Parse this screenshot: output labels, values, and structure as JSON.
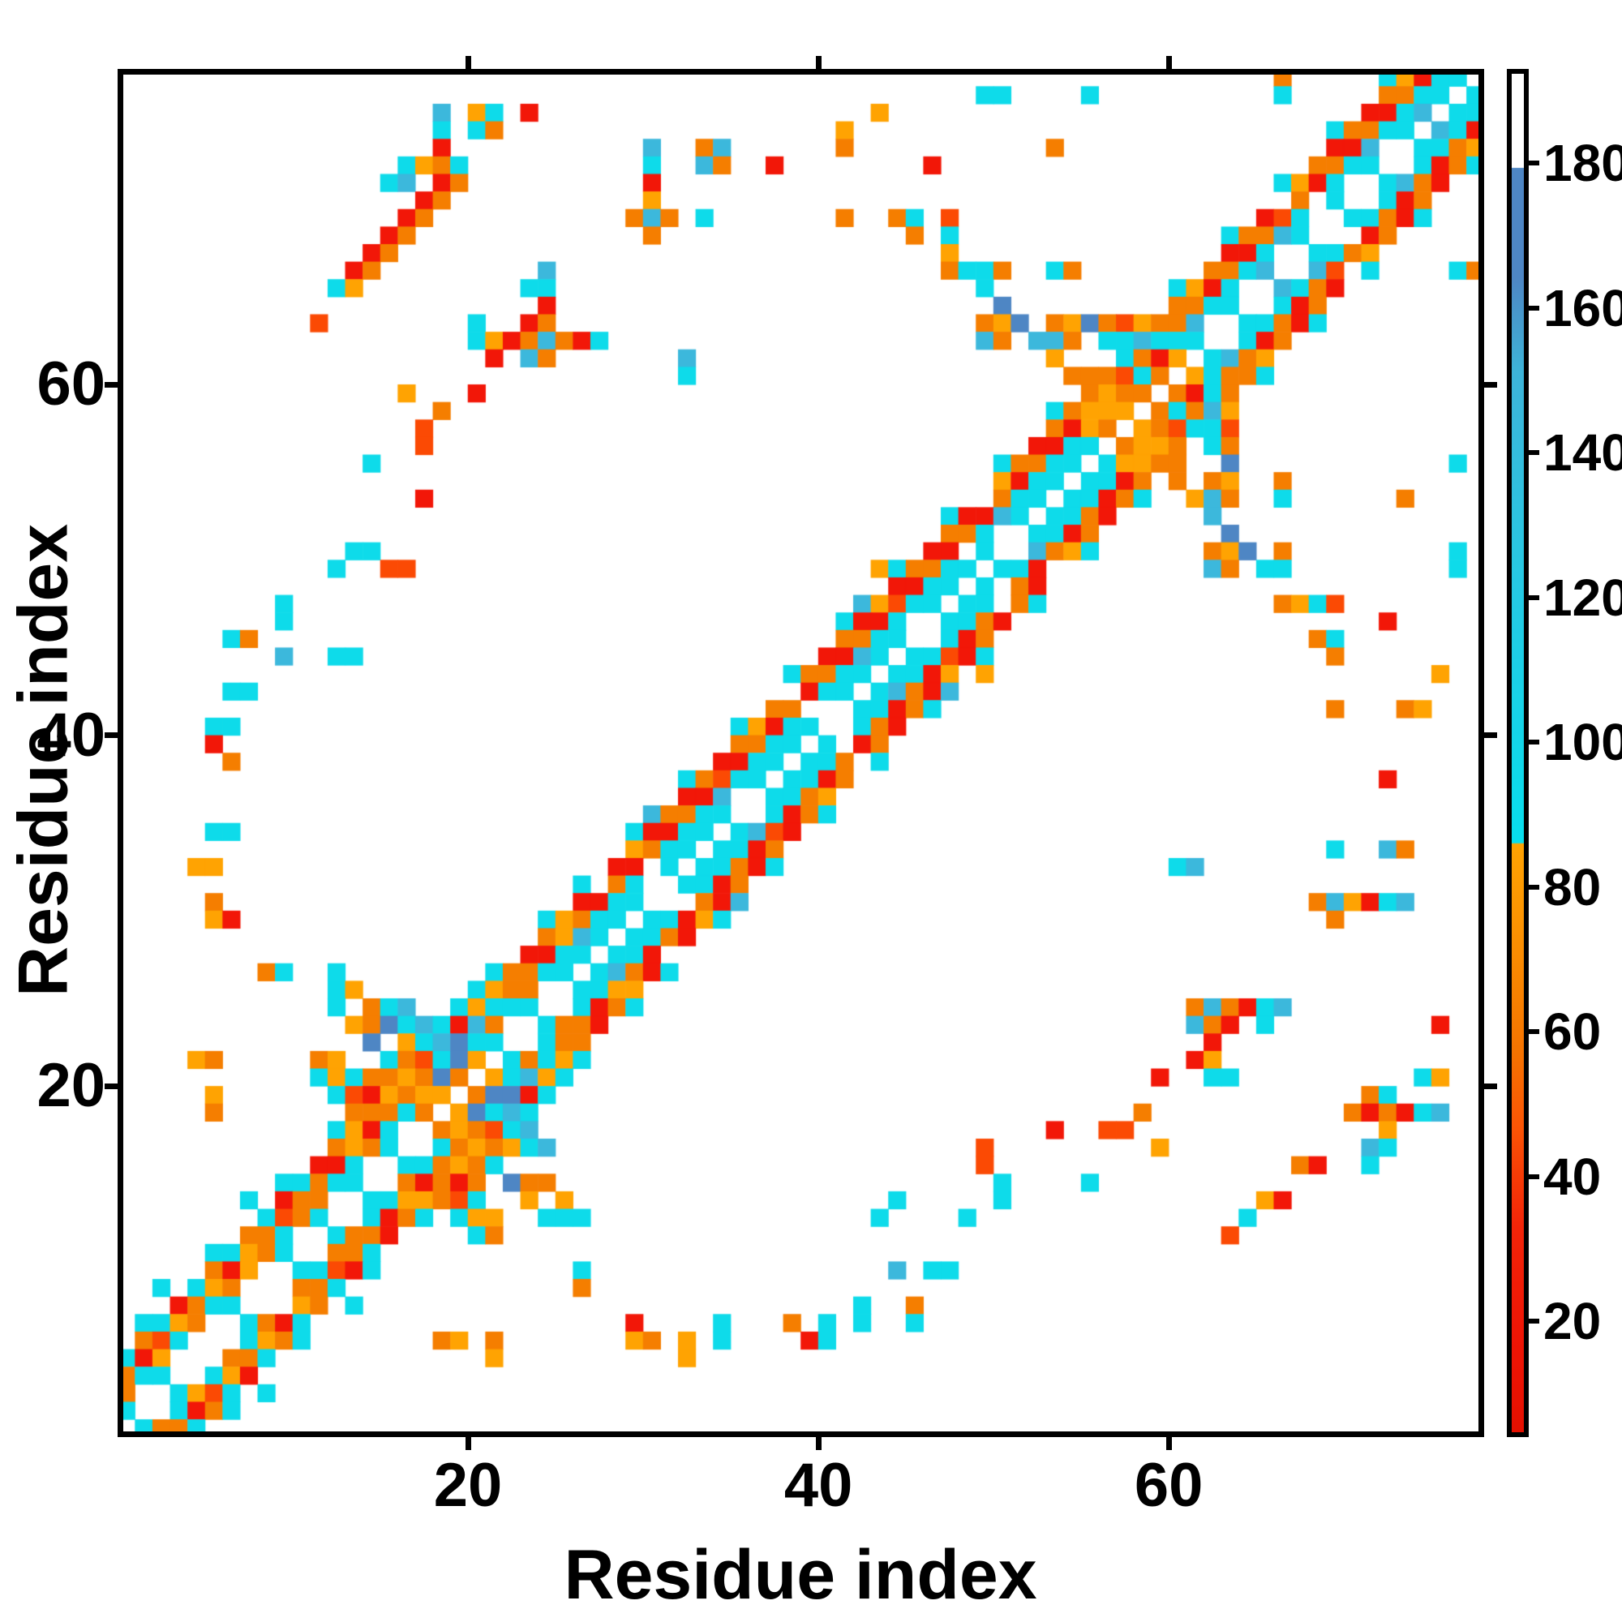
{
  "figure": {
    "x_axis_title": "Residue index",
    "y_axis_title": "Residue index",
    "background": "#ffffff",
    "axis_color": "#000000"
  },
  "chart_data": {
    "type": "heatmap",
    "title": "",
    "xlabel": "Residue index",
    "ylabel": "Residue index",
    "n_residues": 78,
    "x_range": [
      0,
      78
    ],
    "y_range": [
      0,
      78
    ],
    "x_ticks": [
      20,
      40,
      60
    ],
    "y_ticks": [
      20,
      40,
      60
    ],
    "grid": false,
    "symmetric": true,
    "description": "Protein residue-residue contact map. Each colored cell (i,j) is a contact; color encodes the value given by the colorbar (approx. 4-193). Rows are listed top to bottom (residue 78 down to residue 1); each string has 78 characters for residues 1..78 left to right. '.' = no contact (white).",
    "classes": {
      "r": {
        "name": "red",
        "color": "#f21708",
        "approx_value": 25
      },
      "v": {
        "name": "vermilion",
        "color": "#fb4a04",
        "approx_value": 43
      },
      "o": {
        "name": "orange",
        "color": "#f57e00",
        "approx_value": 58
      },
      "a": {
        "name": "amber",
        "color": "#ffa302",
        "approx_value": 76
      },
      "c": {
        "name": "bright-cyan",
        "color": "#0edbea",
        "approx_value": 93
      },
      "m": {
        "name": "medium-cyan",
        "color": "#3cb8dc",
        "approx_value": 132
      },
      "b": {
        "name": "steel-blue",
        "color": "#4e86c4",
        "approx_value": 170
      }
    },
    "rows_top_to_bottom": [
      "..................................................................o.....carcc.",
      ".................................................cc....c..........c.....oocc.c",
      "..................m.ac.r...................a...........................rrcm.cc",
      "..................c.co...................a...........................coocc.mcr",
      "..................r...........m..om......o...........o...............rrm..ccoa",
      "................caoc..........c..mo..r........r.....................oocc..croc",
      "...............cm.ro..........r...................................carc..cmor..",
      ".................ro...........a....................................o.c..cro...",
      "................ro...........omo.c.......o..oc.v.................rvc..ccorc...",
      "...............ro.............o..............o.c...............coomc...ro.....",
      "..............ro...............................a...............rrc..ccoa......",
      ".............ro.........m......................occo..co.......oocm..mv.c....co",
      "............ca.........cc........................c..........carc..mcor........",
      "........................r.........................b.........oocc..cro.........",
      "...........v........c..ro........................oab.oabovaoom..ccorc.........",
      "....................caromorc.....................mo.mmo.ccmccc..cro...........",
      ".....................r.mo.......m....................a...cora.cmoa............",
      "................................c.....................ooovco.acooc............",
      "................a...r..................................oaoo.orco..............",
      "..................o..................................coaaa.ocoma..............",
      ".................v...................................orao.aovccv..............",
      ".................v..................................rrcc.oaao.co..............",
      "..............c...................................coocc.caaoo..b............c.",
      "..................................................arcc.ccro.o.oa..o...........",
      ".................r................................occ.ccroc..amo..c......o....",
      "...............................................crrmc.ccor.....m...............",
      "...............................................ooc..ccro.......b..............",
      ".............cc...............................rr.c..moac......oab.o.........c.",
      "............c..vv..........................acoocc.ccr.........mo.cc.........c.",
      "............................................rrcc.c.or.........................",
      ".........c................................mavcc.cc.oc.............oacv........",
      ".........c...............................crrc..ccor.....................r.....",
      "......co.................................oocc..cro..................oc........",
      ".........m..cc..........................rrmc.ccvrc...................o........",
      "......................................coocc.ccra.a.........................a..",
      "......cc...............................rcc.cmorm..............................",
      ".....................................oo...ccroc......................o...oa...",
      ".....cc............................carcc..cor.................................",
      ".....r.............................oocc.c.ro..................................",
      "......o...........................rrcc.cco.c..................................",
      "................................covcc.ccro..............................r.....",
      "................................rrm..ccoa.....................................",
      "..............................moocc..croc.....................................",
      ".....cc......................crrcc.cmvr.......................................",
      ".............................aocc.ccro...............................c..mo....",
      "....aa......................rr.c.ccorc......................cm................",
      "..........................c.oc..ccro..........................................",
      ".....o....................rrcc...orm................................omarcm....",
      ".....ar.................caocc.ccrac..................................o........",
      "........................oamc.ccor.............................................",
      ".......................rrcc.ccr...............................................",
      "........oc..c........coocc.cmorc..............................................",
      "............ca......caoo..ccaa................................................",
      "............c.ocm..caccc..croc...............................omorcm...........",
      ".............aobcmcrmo..coor.................................mor.c.........r..",
      "..............b.acmbcc..coo...................................r...............",
      "....ao.....oa..covcba.cocac..................................ra...............",
      "...........cacooaobo.acmac.................................r..cc..........ca..",
      ".....a......cvraoaa.obbrc..............................................oc.....",
      ".....o.......oooco.abcmc..................................o...........ororcm..",
      "............carc..oaovcm.............................r..vv..............a.....",
      "............oaoc..coaoacm........................v.........a...........mc.....",
      "...........rrc..ccoaoc...........................v.................or..c......",
      ".........ccocc..ororo.boo.........................c....c......................",
      ".......c.roo..ccaaovc..a.a..................c.....c..............ar...........",
      "........cvoc..croc.caa..ccc................c....c...............c............",
      ".......ooc..coor....co.........................................v..............",
      ".....ccaoc..ooc................................................................",
      ".....ora..ccvrc...........c.................m.cc...............................",
      "..c.cao...ooc.............o....................................................",
      "...rocc...ao.c............................c..o.................................",
      ".ccao..corc..................r....c...o.c.c..c.................................",
      ".ovc...caoc.......oa.o.......ao.a.c....rc......................................",
      "cra...ooc............a..........a..............................................",
      "occ..car.......................................................................",
      "o..cavc.c......................................................................",
      "c..croc........................................................................",
      ".cooc.........................................................................."
    ],
    "colorbar": {
      "vmin": 4,
      "vmax": 193,
      "ticks": [
        20,
        40,
        60,
        80,
        100,
        120,
        140,
        160,
        180
      ],
      "legend_position": "right",
      "gradient_stops_top_to_bottom": [
        {
          "pos": 0,
          "color": "#ffffff"
        },
        {
          "pos": 6.9,
          "color": "#ffffff"
        },
        {
          "pos": 6.95,
          "color": "#4e86c4"
        },
        {
          "pos": 15,
          "color": "#4e86c4"
        },
        {
          "pos": 22,
          "color": "#3db4d9"
        },
        {
          "pos": 35,
          "color": "#2ac6e2"
        },
        {
          "pos": 50,
          "color": "#12d6e9"
        },
        {
          "pos": 56.6,
          "color": "#07dfee"
        },
        {
          "pos": 56.7,
          "color": "#ffa302"
        },
        {
          "pos": 63,
          "color": "#fb9201"
        },
        {
          "pos": 72,
          "color": "#f57300"
        },
        {
          "pos": 77.5,
          "color": "#fb5505"
        },
        {
          "pos": 81,
          "color": "#f63c06"
        },
        {
          "pos": 85,
          "color": "#f22408"
        },
        {
          "pos": 93,
          "color": "#ee1505"
        },
        {
          "pos": 100,
          "color": "#e51000"
        }
      ]
    }
  }
}
